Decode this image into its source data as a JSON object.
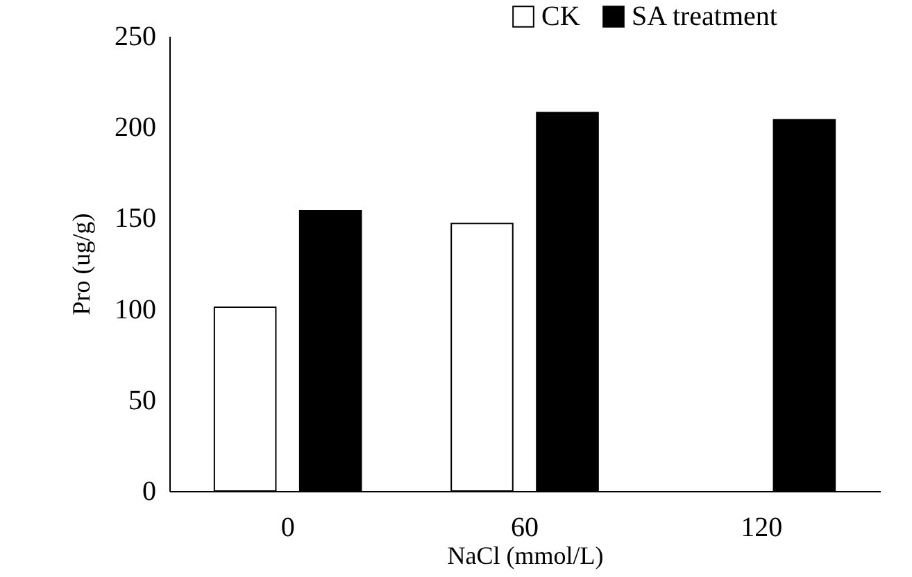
{
  "chart_data": {
    "type": "bar",
    "xlabel": "NaCl (mmol/L)",
    "ylabel": "Pro (ug/g)",
    "categories": [
      "0",
      "60",
      "120"
    ],
    "series": [
      {
        "name": "CK",
        "color": "#ffffff",
        "values": [
          101,
          147,
          null
        ]
      },
      {
        "name": "SA treatment",
        "color": "#000000",
        "values": [
          154,
          208,
          204
        ]
      }
    ],
    "ylim": [
      0,
      250
    ],
    "yticks": [
      0,
      50,
      100,
      150,
      200,
      250
    ],
    "grid": false,
    "legend": "top right"
  }
}
